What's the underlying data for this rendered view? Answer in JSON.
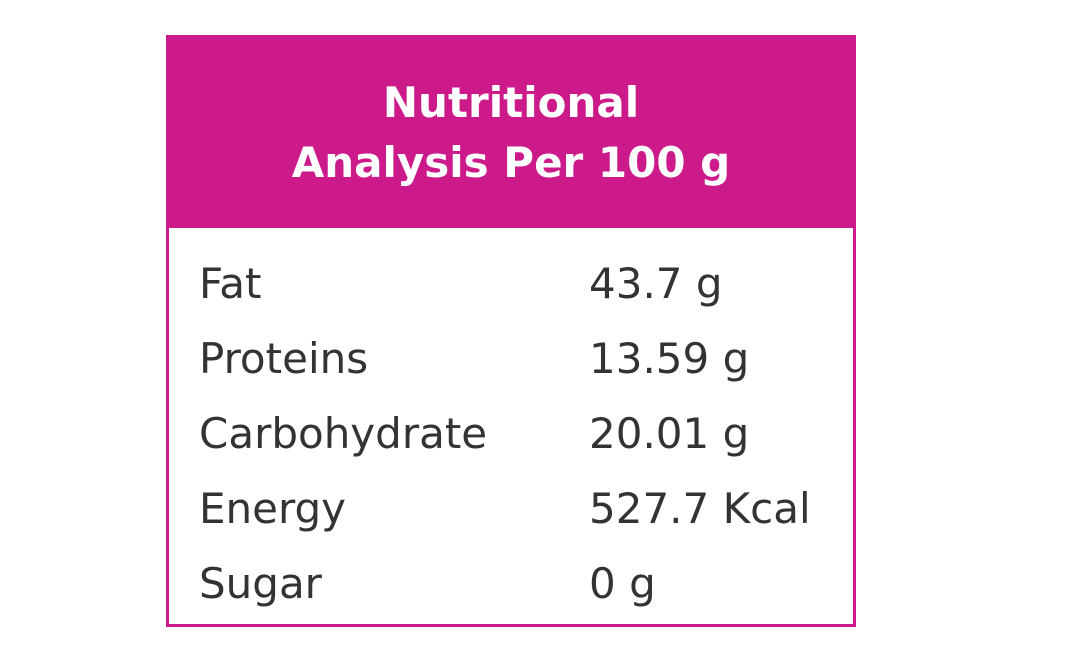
{
  "header": {
    "title_line1": "Nutritional",
    "title_line2": "Analysis Per 100 g"
  },
  "table": {
    "rows": [
      [
        "Fat",
        "43.7 g"
      ],
      [
        "Proteins",
        "13.59 g"
      ],
      [
        "Carbohydrate",
        "20.01 g"
      ],
      [
        "Energy",
        "527.7 Kcal"
      ],
      [
        "Sugar",
        "0 g"
      ]
    ]
  }
}
